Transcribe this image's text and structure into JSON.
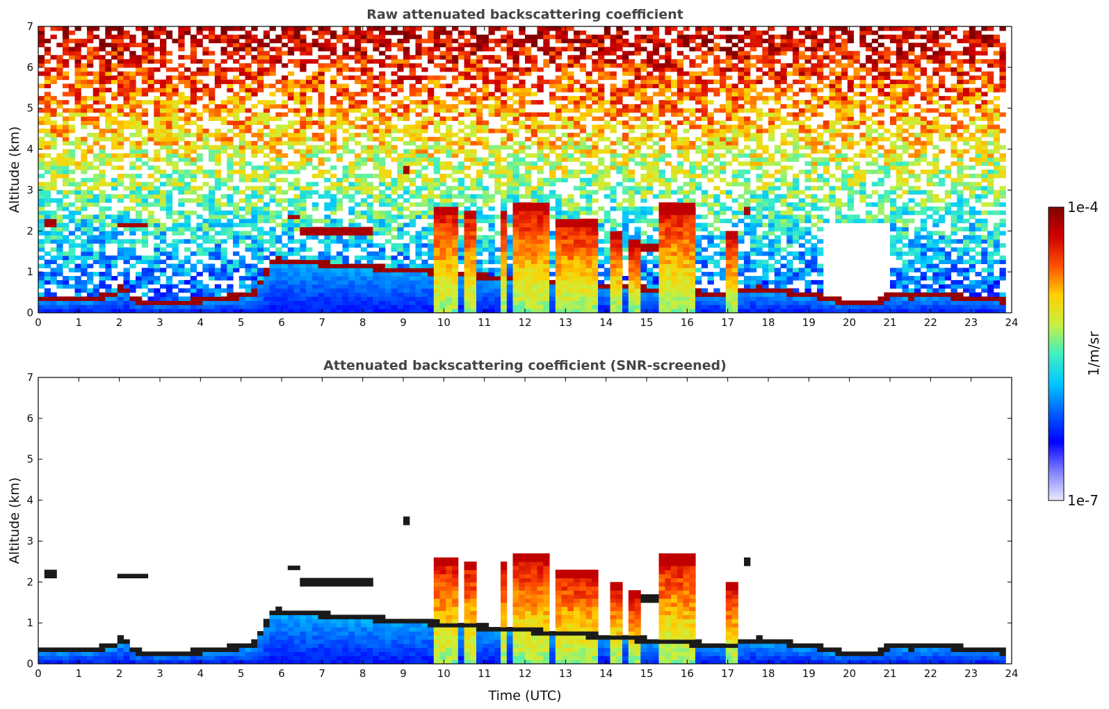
{
  "chart_data": [
    {
      "type": "heatmap",
      "title": "Raw attenuated backscattering coefficient",
      "xlabel": "",
      "ylabel": "Altitude (km)",
      "xlim": [
        0,
        24
      ],
      "ylim": [
        0,
        7
      ],
      "xticks": [
        "0",
        "1",
        "2",
        "3",
        "4",
        "5",
        "6",
        "7",
        "8",
        "9",
        "10",
        "11",
        "12",
        "13",
        "14",
        "15",
        "16",
        "17",
        "18",
        "19",
        "20",
        "21",
        "22",
        "23",
        "24"
      ],
      "yticks": [
        "0",
        "1",
        "2",
        "3",
        "4",
        "5",
        "6",
        "7"
      ],
      "data_end_hour": 23.8,
      "boundary_layer_top_km": [
        {
          "t": 0,
          "h": 0.33
        },
        {
          "t": 1,
          "h": 0.33
        },
        {
          "t": 1.8,
          "h": 0.42
        },
        {
          "t": 2.1,
          "h": 0.65
        },
        {
          "t": 2.4,
          "h": 0.3
        },
        {
          "t": 3,
          "h": 0.25
        },
        {
          "t": 4,
          "h": 0.3
        },
        {
          "t": 4.8,
          "h": 0.4
        },
        {
          "t": 5.3,
          "h": 0.45
        },
        {
          "t": 5.8,
          "h": 1.3
        },
        {
          "t": 16.2,
          "h": 0.5
        },
        {
          "t": 17,
          "h": 0.45
        },
        {
          "t": 17.7,
          "h": 0.6
        },
        {
          "t": 18.5,
          "h": 0.5
        },
        {
          "t": 19.3,
          "h": 0.4
        },
        {
          "t": 20,
          "h": 0.22
        },
        {
          "t": 20.8,
          "h": 0.3
        },
        {
          "t": 21,
          "h": 0.45
        },
        {
          "t": 21.5,
          "h": 0.4
        },
        {
          "t": 22,
          "h": 0.45
        },
        {
          "t": 23,
          "h": 0.38
        },
        {
          "t": 23.8,
          "h": 0.3
        }
      ],
      "cloud_columns": [
        {
          "t0": 9.75,
          "t1": 10.3,
          "top": 2.6
        },
        {
          "t0": 10.5,
          "t1": 10.75,
          "top": 2.5
        },
        {
          "t0": 11.4,
          "t1": 11.6,
          "top": 2.5
        },
        {
          "t0": 11.7,
          "t1": 12.6,
          "top": 2.7
        },
        {
          "t0": 12.8,
          "t1": 13.3,
          "top": 2.3
        },
        {
          "t0": 13.35,
          "t1": 13.8,
          "top": 2.3
        },
        {
          "t0": 14.1,
          "t1": 14.35,
          "top": 2.0
        },
        {
          "t0": 14.5,
          "t1": 14.8,
          "top": 1.8
        },
        {
          "t0": 15.3,
          "t1": 16.2,
          "top": 2.65
        },
        {
          "t0": 17.0,
          "t1": 17.3,
          "top": 2.0
        }
      ],
      "elevated_layers": [
        {
          "t0": 0.1,
          "t1": 0.5,
          "h": 2.2
        },
        {
          "t0": 2.0,
          "t1": 2.7,
          "h": 2.15
        },
        {
          "t0": 6.2,
          "t1": 6.4,
          "h": 2.35
        },
        {
          "t0": 6.5,
          "t1": 7.3,
          "h": 2.0
        },
        {
          "t0": 7.3,
          "t1": 8.3,
          "h": 2.0
        },
        {
          "t0": 9.0,
          "t1": 9.2,
          "h": 3.5
        },
        {
          "t0": 14.9,
          "t1": 15.3,
          "h": 1.6
        },
        {
          "t0": 17.4,
          "t1": 17.5,
          "h": 2.5
        }
      ]
    },
    {
      "type": "heatmap",
      "title": "Attenuated backscattering coefficient (SNR-screened)",
      "xlabel": "Time (UTC)",
      "ylabel": "Altitude (km)",
      "xlim": [
        0,
        24
      ],
      "ylim": [
        0,
        7
      ],
      "xticks": [
        "0",
        "1",
        "2",
        "3",
        "4",
        "5",
        "6",
        "7",
        "8",
        "9",
        "10",
        "11",
        "12",
        "13",
        "14",
        "15",
        "16",
        "17",
        "18",
        "19",
        "20",
        "21",
        "22",
        "23",
        "24"
      ],
      "yticks": [
        "0",
        "1",
        "2",
        "3",
        "4",
        "5",
        "6",
        "7"
      ]
    }
  ],
  "colorbar": {
    "label": "1/m/sr",
    "max_label": "1e-4",
    "min_label": "1e-7",
    "scale": "log",
    "colors": [
      "#eaeaff",
      "#7f7fff",
      "#0000ff",
      "#0060ff",
      "#00c8ff",
      "#40f0c0",
      "#c8f040",
      "#ffd000",
      "#ff5000",
      "#d00000",
      "#800000"
    ]
  }
}
